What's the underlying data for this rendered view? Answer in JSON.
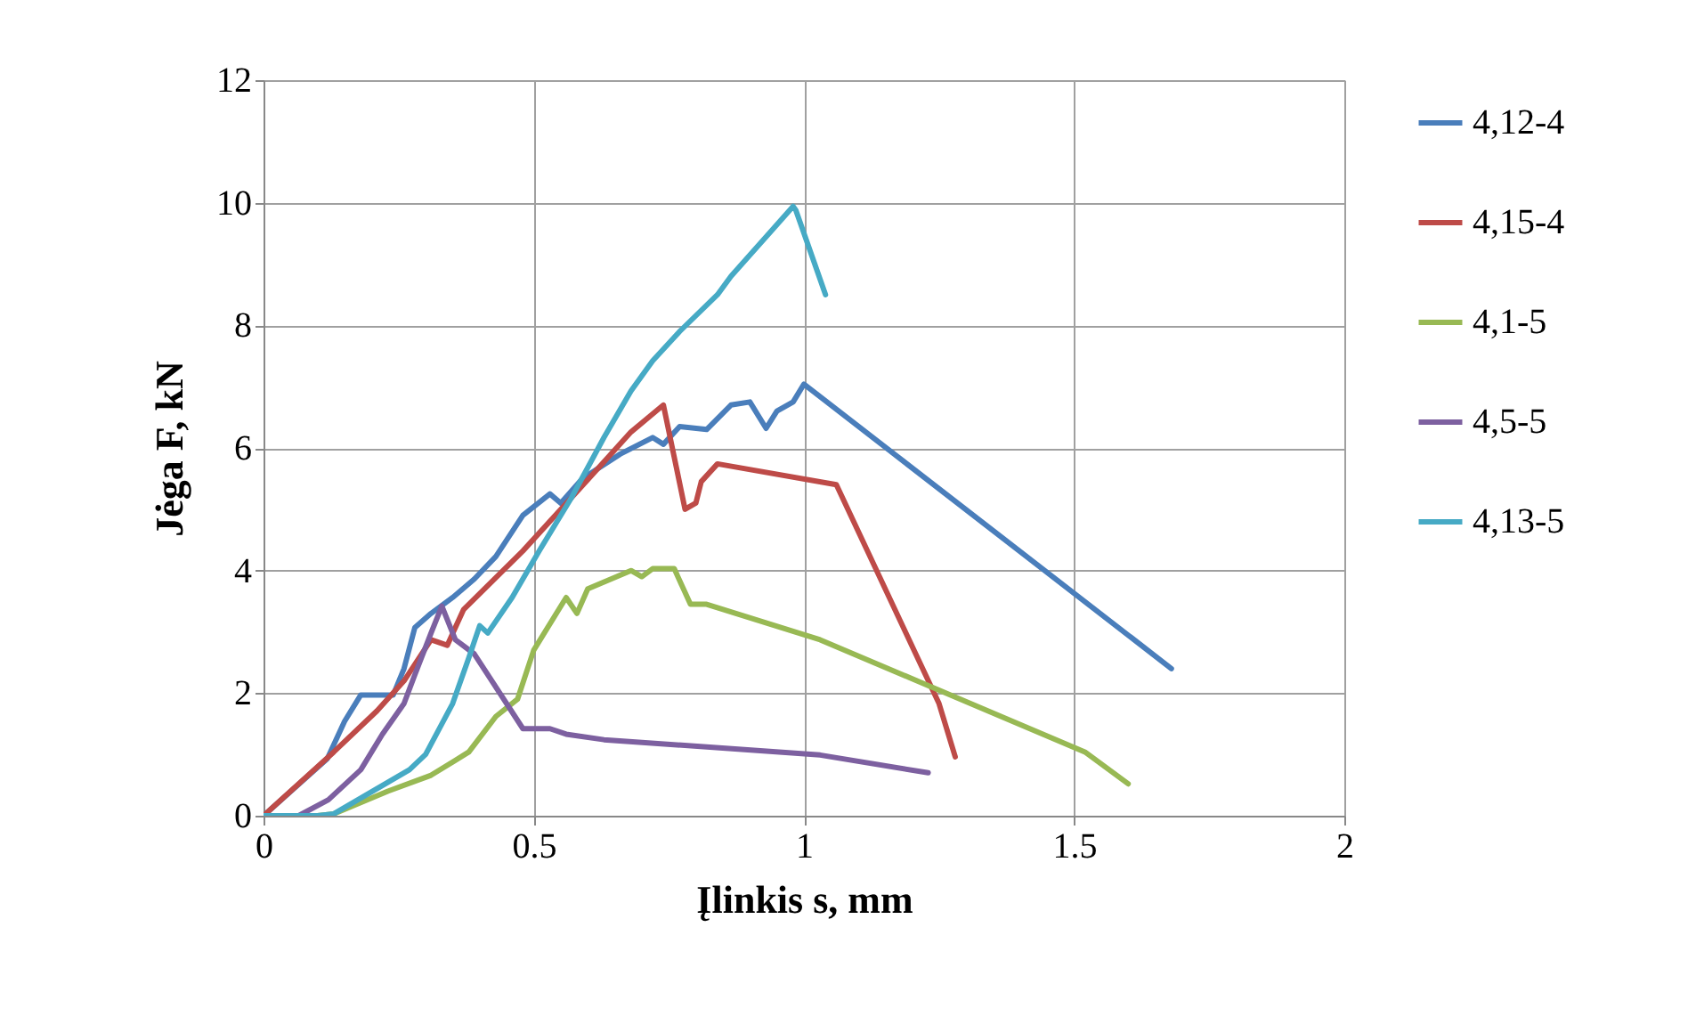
{
  "chart_data": {
    "type": "line",
    "xlabel": "Įlinkis s, mm",
    "ylabel": "Jėga F, kN",
    "xlim": [
      0,
      2
    ],
    "xticks": [
      0,
      0.5,
      1,
      1.5,
      2
    ],
    "ylim": [
      0,
      12
    ],
    "yticks": [
      0,
      2,
      4,
      6,
      8,
      10,
      12
    ],
    "grid": true,
    "legend": "right",
    "marker": "none",
    "line_style": "solid",
    "series": [
      {
        "name": "4,12-4",
        "color": "#4a7ebb",
        "x": [
          0,
          0.118,
          0.15,
          0.18,
          0.24,
          0.26,
          0.28,
          0.31,
          0.35,
          0.39,
          0.43,
          0.48,
          0.53,
          0.55,
          0.59,
          0.66,
          0.72,
          0.74,
          0.77,
          0.82,
          0.865,
          0.9,
          0.93,
          0.95,
          0.98,
          1.0,
          1.68
        ],
        "values": [
          0,
          0.93,
          1.54,
          1.97,
          1.97,
          2.4,
          3.07,
          3.3,
          3.56,
          3.86,
          4.23,
          4.9,
          5.25,
          5.1,
          5.5,
          5.9,
          6.17,
          6.06,
          6.35,
          6.3,
          6.7,
          6.75,
          6.32,
          6.6,
          6.75,
          7.04,
          2.4
        ]
      },
      {
        "name": "4,15-4",
        "color": "#be4b48",
        "x": [
          0,
          0.04,
          0.13,
          0.21,
          0.26,
          0.31,
          0.34,
          0.37,
          0.48,
          0.57,
          0.68,
          0.74,
          0.78,
          0.8,
          0.81,
          0.84,
          1.06,
          1.25,
          1.28
        ],
        "values": [
          0,
          0.32,
          1.04,
          1.71,
          2.2,
          2.87,
          2.78,
          3.36,
          4.32,
          5.19,
          6.26,
          6.7,
          5.0,
          5.1,
          5.45,
          5.74,
          5.4,
          1.83,
          0.96
        ]
      },
      {
        "name": "4,1-5",
        "color": "#98b954",
        "x": [
          0,
          0.1,
          0.13,
          0.23,
          0.31,
          0.38,
          0.43,
          0.47,
          0.5,
          0.56,
          0.58,
          0.6,
          0.68,
          0.7,
          0.72,
          0.76,
          0.79,
          0.82,
          1.03,
          1.52,
          1.6
        ],
        "values": [
          0,
          0,
          0.03,
          0.4,
          0.66,
          1.04,
          1.62,
          1.9,
          2.7,
          3.56,
          3.3,
          3.7,
          4.0,
          3.9,
          4.03,
          4.03,
          3.45,
          3.45,
          2.87,
          1.04,
          0.52
        ]
      },
      {
        "name": "4,5-5",
        "color": "#7d60a0",
        "x": [
          0,
          0.065,
          0.12,
          0.18,
          0.22,
          0.26,
          0.28,
          0.31,
          0.33,
          0.355,
          0.39,
          0.48,
          0.53,
          0.56,
          0.63,
          1.03,
          1.23
        ],
        "values": [
          0,
          0,
          0.26,
          0.75,
          1.33,
          1.83,
          2.3,
          2.98,
          3.42,
          2.87,
          2.64,
          1.42,
          1.42,
          1.33,
          1.24,
          0.99,
          0.7
        ]
      },
      {
        "name": "4,13-5",
        "color": "#46aac5",
        "x": [
          0,
          0.1,
          0.13,
          0.27,
          0.3,
          0.35,
          0.38,
          0.4,
          0.415,
          0.46,
          0.51,
          0.57,
          0.63,
          0.68,
          0.72,
          0.77,
          0.84,
          0.865,
          0.98,
          0.985,
          1.04
        ],
        "values": [
          0,
          0,
          0.03,
          0.75,
          1.0,
          1.83,
          2.58,
          3.1,
          2.98,
          3.56,
          4.32,
          5.19,
          6.17,
          6.93,
          7.42,
          7.9,
          8.5,
          8.8,
          9.94,
          9.88,
          8.5
        ]
      }
    ]
  }
}
